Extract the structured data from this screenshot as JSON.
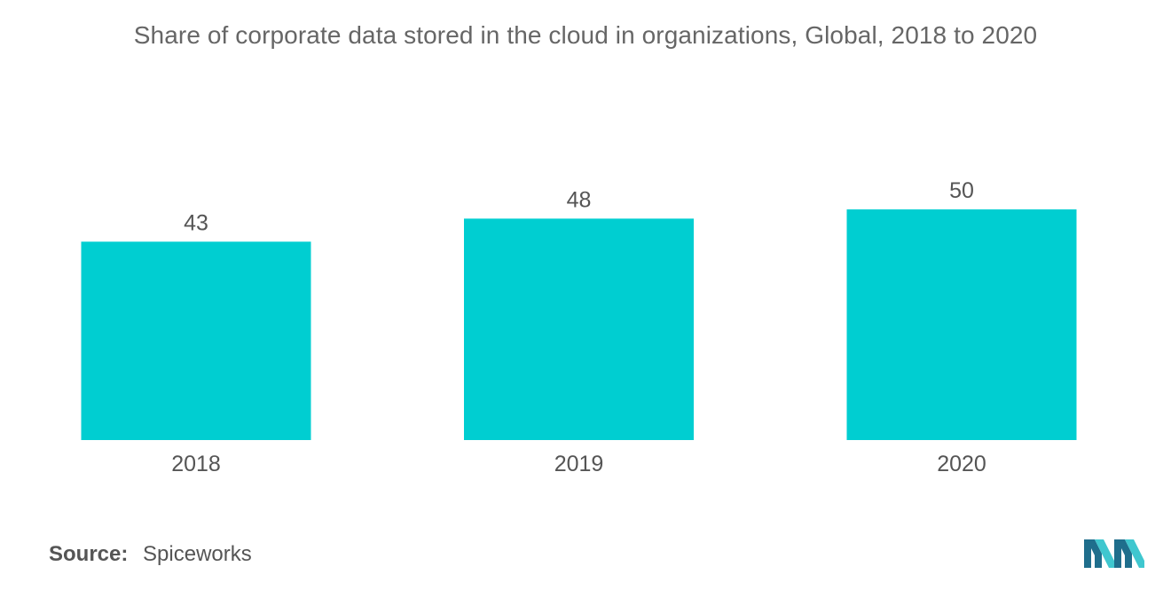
{
  "chart_data": {
    "type": "bar",
    "title": "Share of corporate data stored in the cloud in organizations, Global, 2018 to 2020",
    "categories": [
      "2018",
      "2019",
      "2020"
    ],
    "values": [
      43,
      48,
      50
    ],
    "data_labels": [
      "43",
      "48",
      "50"
    ],
    "xlabel": "",
    "ylabel": "",
    "ylim": [
      0,
      50
    ],
    "grid": false,
    "legend": "none",
    "bar_color": "#00CED1"
  },
  "source": {
    "label": "Source:",
    "value": "Spiceworks"
  },
  "colors": {
    "accent": "#00CED1",
    "logo_dark": "#1F6E8C",
    "logo_light": "#3FC7CF"
  }
}
